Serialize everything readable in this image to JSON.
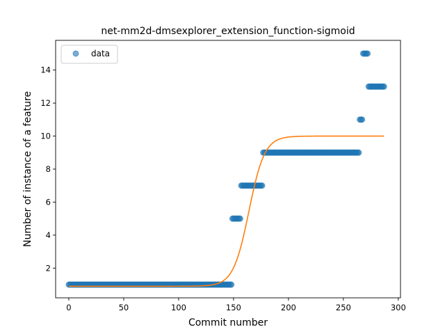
{
  "chart_data": {
    "type": "scatter",
    "title": "net-mm2d-dmsexplorer_extension_function-sigmoid",
    "xlabel": "Commit number",
    "ylabel": "Number of instance of a feature",
    "xlim": [
      -12,
      302
    ],
    "ylim": [
      0.2,
      15.8
    ],
    "xticks": [
      0,
      50,
      100,
      150,
      200,
      250,
      300
    ],
    "yticks": [
      2,
      4,
      6,
      8,
      10,
      12,
      14
    ],
    "grid": false,
    "legend": {
      "position": "top-left",
      "entries": [
        "data"
      ]
    },
    "colors": {
      "data": "#1f77b4",
      "fit": "#ff7f0e"
    },
    "data_segments": [
      {
        "x_start": 0,
        "x_end": 148,
        "y": 1
      },
      {
        "x_start": 149,
        "x_end": 156,
        "y": 5
      },
      {
        "x_start": 157,
        "x_end": 176,
        "y": 7
      },
      {
        "x_start": 177,
        "x_end": 264,
        "y": 9
      },
      {
        "x_start": 265,
        "x_end": 267,
        "y": 11
      },
      {
        "x_start": 268,
        "x_end": 272,
        "y": 15
      },
      {
        "x_start": 273,
        "x_end": 287,
        "y": 13
      }
    ],
    "fit": {
      "model": "sigmoid",
      "L": 9.1,
      "x0": 164,
      "k": 0.14,
      "b": 0.9,
      "x_start": 0,
      "x_end": 287
    }
  }
}
